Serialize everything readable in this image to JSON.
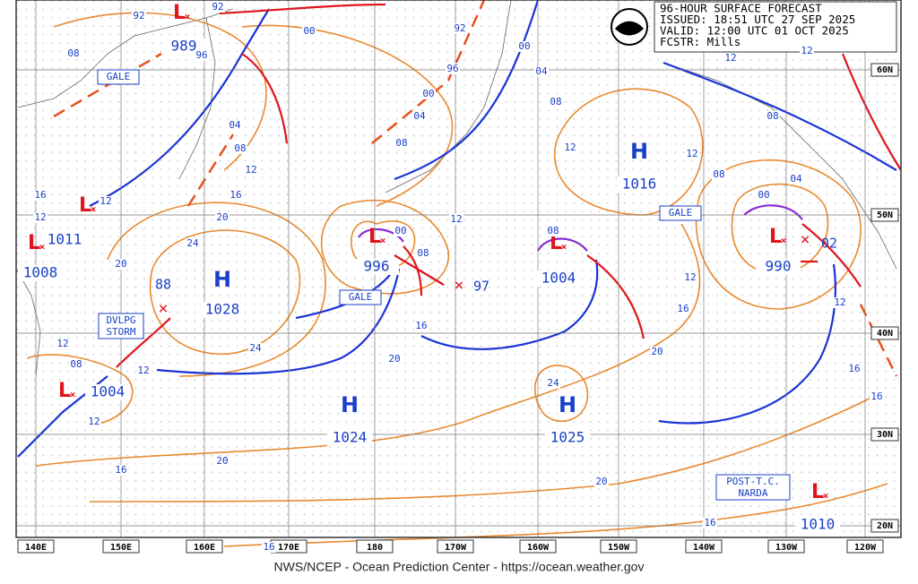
{
  "header": {
    "lines": [
      "96-HOUR SURFACE FORECAST",
      "ISSUED: 18:51 UTC 27 SEP 2025",
      "VALID:  12:00 UTC 01 OCT 2025",
      "FCSTR:  Mills"
    ]
  },
  "longitude_labels": [
    "140E",
    "150E",
    "160E",
    "170E",
    "180",
    "170W",
    "160W",
    "150W",
    "140W",
    "130W",
    "120W"
  ],
  "latitude_labels": [
    "60N",
    "50N",
    "40N",
    "30N",
    "20N"
  ],
  "systems": [
    {
      "symbol": "L",
      "pressure": 989
    },
    {
      "symbol": "L",
      "pressure": 1011
    },
    {
      "symbol": "L",
      "pressure": 1008
    },
    {
      "symbol": "H",
      "pressure": 1028
    },
    {
      "symbol": "L",
      "pressure": 1004
    },
    {
      "symbol": "L",
      "pressure": 996
    },
    {
      "symbol": "L",
      "pressure": 1004
    },
    {
      "symbol": "H",
      "pressure": 1016
    },
    {
      "symbol": "L",
      "pressure": 990
    },
    {
      "symbol": "H",
      "pressure": 1024
    },
    {
      "symbol": "H",
      "pressure": 1025
    },
    {
      "symbol": "L",
      "pressure": 1010
    }
  ],
  "forecast_positions": [
    "88",
    "97",
    "02"
  ],
  "isobar_labels": [
    "92",
    "92",
    "08",
    "96",
    "00",
    "92",
    "00",
    "96",
    "04",
    "00",
    "04",
    "08",
    "04",
    "08",
    "08",
    "12",
    "12",
    "12",
    "08",
    "12",
    "12",
    "08",
    "04",
    "16",
    "12",
    "12",
    "16",
    "20",
    "24",
    "12",
    "08",
    "00",
    "08",
    "00",
    "20",
    "12",
    "16",
    "16",
    "12",
    "24",
    "12",
    "08",
    "12",
    "20",
    "20",
    "16",
    "16",
    "24",
    "12",
    "20",
    "16",
    "20",
    "16",
    "16"
  ],
  "boxes": [
    "GALE",
    "GALE",
    "GALE",
    "DVLPG STORM",
    "POST-T.C. NARDA"
  ],
  "footer": "NWS/NCEP - Ocean Prediction Center - https://ocean.weather.gov"
}
